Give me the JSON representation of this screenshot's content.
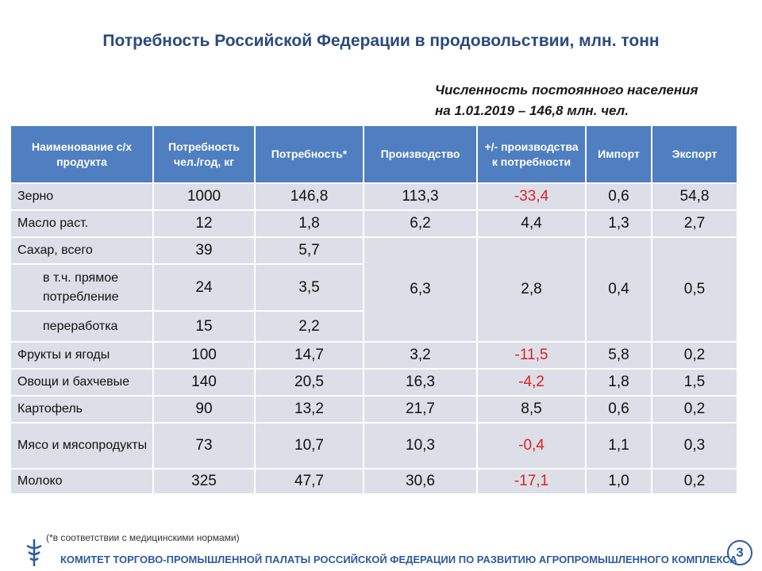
{
  "header": {
    "title": "Потребность Российской Федерации в продовольствии, млн. тонн"
  },
  "note": {
    "lines": [
      "Численность постоянного населения",
      "на 1.01.2019 – 146,8 млн. чел."
    ]
  },
  "table": {
    "columns": [
      "Наименование с/х продукта",
      "Потребность чел./год, кг",
      "Потребность*",
      "Производство",
      "+/- производства к потребности",
      "Импорт",
      "Экспорт"
    ],
    "negative_color": "#e02020",
    "rows": [
      [
        "Зерно",
        "1000",
        "146,8",
        "113,3",
        "-33,4",
        "0,6",
        "54,8"
      ],
      [
        "Масло раст.",
        "12",
        "1,8",
        "6,2",
        "4,4",
        "1,3",
        "2,7"
      ],
      [
        "Сахар, всего",
        "39",
        "5,7",
        "6,3",
        "2,8",
        "0,4",
        "0,5"
      ],
      [
        "в т.ч. прямое потребление",
        "24",
        "3,5"
      ],
      [
        "переработка",
        "15",
        "2,2"
      ],
      [
        "Фрукты и ягоды",
        "100",
        "14,7",
        "3,2",
        "-11,5",
        "5,8",
        "0,2"
      ],
      [
        "Овощи и бахчевые",
        "140",
        "20,5",
        "16,3",
        "-4,2",
        "1,8",
        "1,5"
      ],
      [
        "Картофель",
        "90",
        "13,2",
        "21,7",
        "8,5",
        "0,6",
        "0,2"
      ],
      [
        "Мясо и мясопродукты",
        "73",
        "10,7",
        "10,3",
        "-0,4",
        "1,1",
        "0,3"
      ],
      [
        "Молоко",
        "325",
        "47,7",
        "30,6",
        "-17,1",
        "1,0",
        "0,2"
      ]
    ]
  },
  "footnote": "(*в соответствии с медицинскими нормами)",
  "footer": {
    "text": "КОМИТЕТ ТОРГОВО-ПРОМЫШЛЕННОЙ ПАЛАТЫ РОССИЙСКОЙ ФЕДЕРАЦИИ ПО РАЗВИТИЮ АГРОПРОМЫШЛЕННОГО КОМПЛЕКСА",
    "page_number": "3"
  }
}
